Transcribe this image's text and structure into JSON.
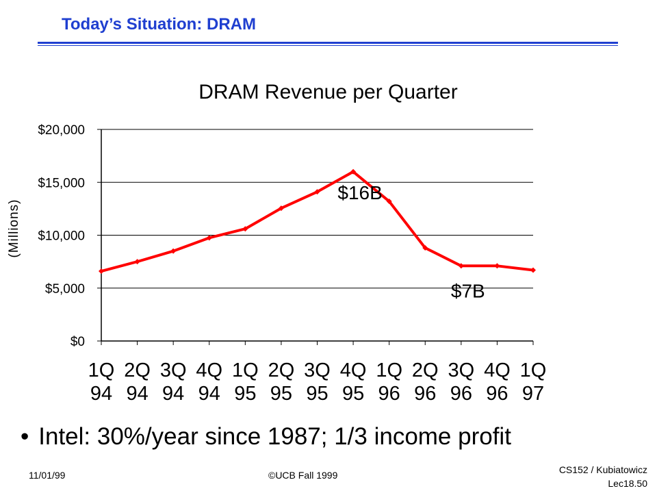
{
  "slide": {
    "title": "Today’s Situation: DRAM",
    "bullet": "•",
    "bullet_text": "Intel: 30%/year since 1987; 1/3 income profit"
  },
  "footer": {
    "date": "11/01/99",
    "copyright": "©UCB Fall 1999",
    "course": "CS152 / Kubiatowicz",
    "lecture": "Lec18.50"
  },
  "colors": {
    "title": "#1f3fd0",
    "series_line": "#ff0000",
    "axis": "#000000",
    "grid": "#000000"
  },
  "chart_data": {
    "type": "line",
    "title": "DRAM Revenue per Quarter",
    "xlabel": "",
    "ylabel": "(Millions)",
    "ylim": [
      0,
      20000
    ],
    "yticks": [
      0,
      5000,
      10000,
      15000,
      20000
    ],
    "ytick_labels": [
      "$0",
      "$5,000",
      "$10,000",
      "$15,000",
      "$20,000"
    ],
    "grid": true,
    "categories": [
      [
        "1Q",
        "94"
      ],
      [
        "2Q",
        "94"
      ],
      [
        "3Q",
        "94"
      ],
      [
        "4Q",
        "94"
      ],
      [
        "1Q",
        "95"
      ],
      [
        "2Q",
        "95"
      ],
      [
        "3Q",
        "95"
      ],
      [
        "4Q",
        "95"
      ],
      [
        "1Q",
        "96"
      ],
      [
        "2Q",
        "96"
      ],
      [
        "3Q",
        "96"
      ],
      [
        "4Q",
        "96"
      ],
      [
        "1Q",
        "97"
      ]
    ],
    "series": [
      {
        "values": [
          6600,
          7500,
          8500,
          9750,
          10600,
          12550,
          14100,
          16000,
          13200,
          8800,
          7100,
          7100,
          6700
        ]
      }
    ],
    "annotations": [
      {
        "text": "$16B",
        "category_index": 7
      },
      {
        "text": "$7B",
        "category_index": 10
      }
    ]
  }
}
